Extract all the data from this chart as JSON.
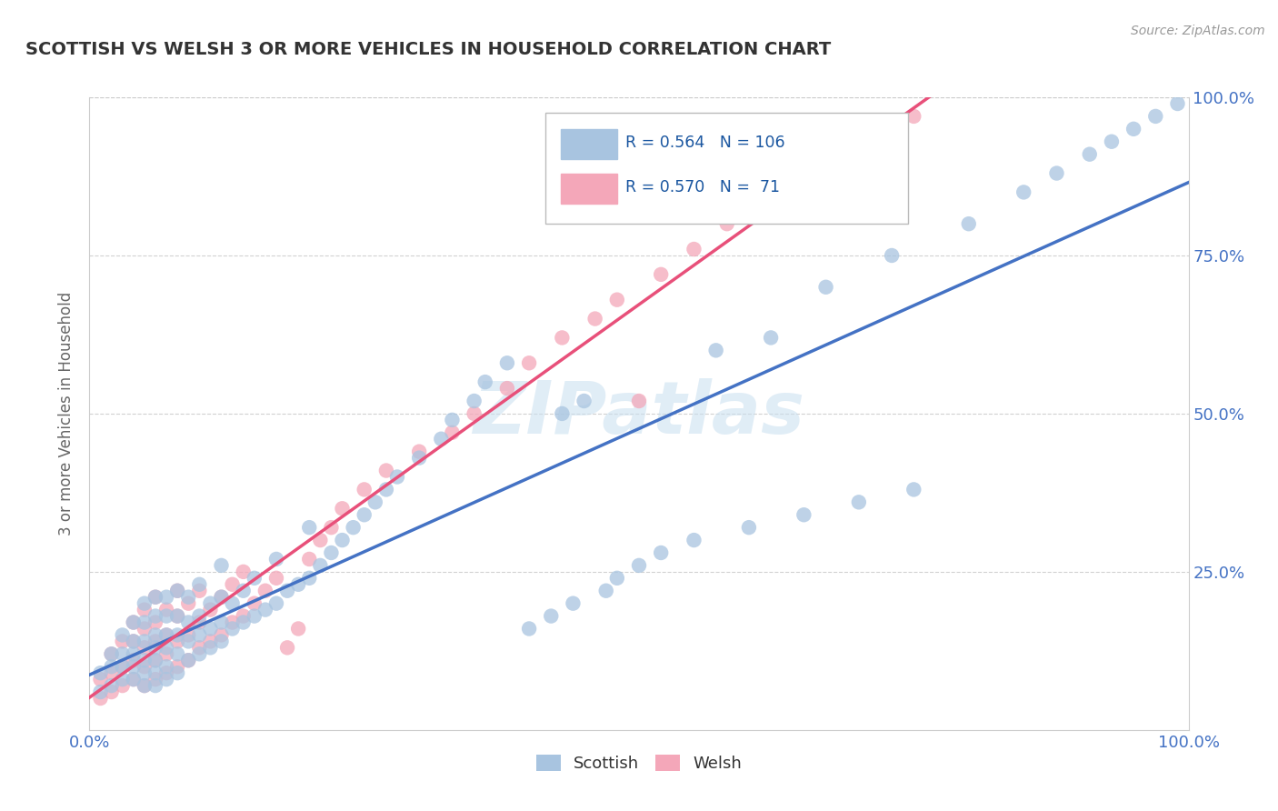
{
  "title": "SCOTTISH VS WELSH 3 OR MORE VEHICLES IN HOUSEHOLD CORRELATION CHART",
  "source": "Source: ZipAtlas.com",
  "ylabel": "3 or more Vehicles in Household",
  "xlim": [
    0.0,
    1.0
  ],
  "ylim": [
    0.0,
    1.0
  ],
  "scottish_R": "0.564",
  "scottish_N": "106",
  "welsh_R": "0.570",
  "welsh_N": "71",
  "scottish_color": "#a8c4e0",
  "welsh_color": "#f4a7b9",
  "scottish_line_color": "#4472c4",
  "welsh_line_color": "#e8507a",
  "title_color": "#333333",
  "legend_text_color": "#1a56a0",
  "watermark": "ZIPatlas",
  "background_color": "#ffffff",
  "grid_color": "#cccccc",
  "scottish_x": [
    0.01,
    0.01,
    0.02,
    0.02,
    0.02,
    0.03,
    0.03,
    0.03,
    0.03,
    0.04,
    0.04,
    0.04,
    0.04,
    0.04,
    0.05,
    0.05,
    0.05,
    0.05,
    0.05,
    0.05,
    0.06,
    0.06,
    0.06,
    0.06,
    0.06,
    0.06,
    0.06,
    0.07,
    0.07,
    0.07,
    0.07,
    0.07,
    0.07,
    0.08,
    0.08,
    0.08,
    0.08,
    0.08,
    0.09,
    0.09,
    0.09,
    0.09,
    0.1,
    0.1,
    0.1,
    0.1,
    0.11,
    0.11,
    0.11,
    0.12,
    0.12,
    0.12,
    0.12,
    0.13,
    0.13,
    0.14,
    0.14,
    0.15,
    0.15,
    0.16,
    0.17,
    0.17,
    0.18,
    0.19,
    0.2,
    0.2,
    0.21,
    0.22,
    0.23,
    0.24,
    0.25,
    0.26,
    0.27,
    0.28,
    0.3,
    0.32,
    0.33,
    0.35,
    0.36,
    0.38,
    0.4,
    0.42,
    0.43,
    0.44,
    0.45,
    0.47,
    0.48,
    0.5,
    0.52,
    0.55,
    0.57,
    0.6,
    0.62,
    0.65,
    0.67,
    0.7,
    0.73,
    0.75,
    0.8,
    0.85,
    0.88,
    0.91,
    0.93,
    0.95,
    0.97,
    0.99
  ],
  "scottish_y": [
    0.06,
    0.09,
    0.07,
    0.1,
    0.12,
    0.08,
    0.1,
    0.12,
    0.15,
    0.08,
    0.1,
    0.12,
    0.14,
    0.17,
    0.07,
    0.09,
    0.11,
    0.14,
    0.17,
    0.2,
    0.07,
    0.09,
    0.11,
    0.13,
    0.15,
    0.18,
    0.21,
    0.08,
    0.1,
    0.13,
    0.15,
    0.18,
    0.21,
    0.09,
    0.12,
    0.15,
    0.18,
    0.22,
    0.11,
    0.14,
    0.17,
    0.21,
    0.12,
    0.15,
    0.18,
    0.23,
    0.13,
    0.16,
    0.2,
    0.14,
    0.17,
    0.21,
    0.26,
    0.16,
    0.2,
    0.17,
    0.22,
    0.18,
    0.24,
    0.19,
    0.2,
    0.27,
    0.22,
    0.23,
    0.24,
    0.32,
    0.26,
    0.28,
    0.3,
    0.32,
    0.34,
    0.36,
    0.38,
    0.4,
    0.43,
    0.46,
    0.49,
    0.52,
    0.55,
    0.58,
    0.16,
    0.18,
    0.5,
    0.2,
    0.52,
    0.22,
    0.24,
    0.26,
    0.28,
    0.3,
    0.6,
    0.32,
    0.62,
    0.34,
    0.7,
    0.36,
    0.75,
    0.38,
    0.8,
    0.85,
    0.88,
    0.91,
    0.93,
    0.95,
    0.97,
    0.99
  ],
  "welsh_x": [
    0.01,
    0.01,
    0.02,
    0.02,
    0.02,
    0.03,
    0.03,
    0.03,
    0.04,
    0.04,
    0.04,
    0.04,
    0.05,
    0.05,
    0.05,
    0.05,
    0.05,
    0.06,
    0.06,
    0.06,
    0.06,
    0.06,
    0.07,
    0.07,
    0.07,
    0.07,
    0.08,
    0.08,
    0.08,
    0.08,
    0.09,
    0.09,
    0.09,
    0.1,
    0.1,
    0.1,
    0.11,
    0.11,
    0.12,
    0.12,
    0.13,
    0.13,
    0.14,
    0.14,
    0.15,
    0.16,
    0.17,
    0.18,
    0.19,
    0.2,
    0.21,
    0.22,
    0.23,
    0.25,
    0.27,
    0.3,
    0.33,
    0.35,
    0.38,
    0.4,
    0.43,
    0.46,
    0.48,
    0.5,
    0.52,
    0.55,
    0.58,
    0.62,
    0.65,
    0.7,
    0.75
  ],
  "welsh_y": [
    0.05,
    0.08,
    0.06,
    0.09,
    0.12,
    0.07,
    0.1,
    0.14,
    0.08,
    0.11,
    0.14,
    0.17,
    0.07,
    0.1,
    0.13,
    0.16,
    0.19,
    0.08,
    0.11,
    0.14,
    0.17,
    0.21,
    0.09,
    0.12,
    0.15,
    0.19,
    0.1,
    0.14,
    0.18,
    0.22,
    0.11,
    0.15,
    0.2,
    0.13,
    0.17,
    0.22,
    0.14,
    0.19,
    0.15,
    0.21,
    0.17,
    0.23,
    0.18,
    0.25,
    0.2,
    0.22,
    0.24,
    0.13,
    0.16,
    0.27,
    0.3,
    0.32,
    0.35,
    0.38,
    0.41,
    0.44,
    0.47,
    0.5,
    0.54,
    0.58,
    0.62,
    0.65,
    0.68,
    0.52,
    0.72,
    0.76,
    0.8,
    0.84,
    0.88,
    0.93,
    0.97
  ]
}
